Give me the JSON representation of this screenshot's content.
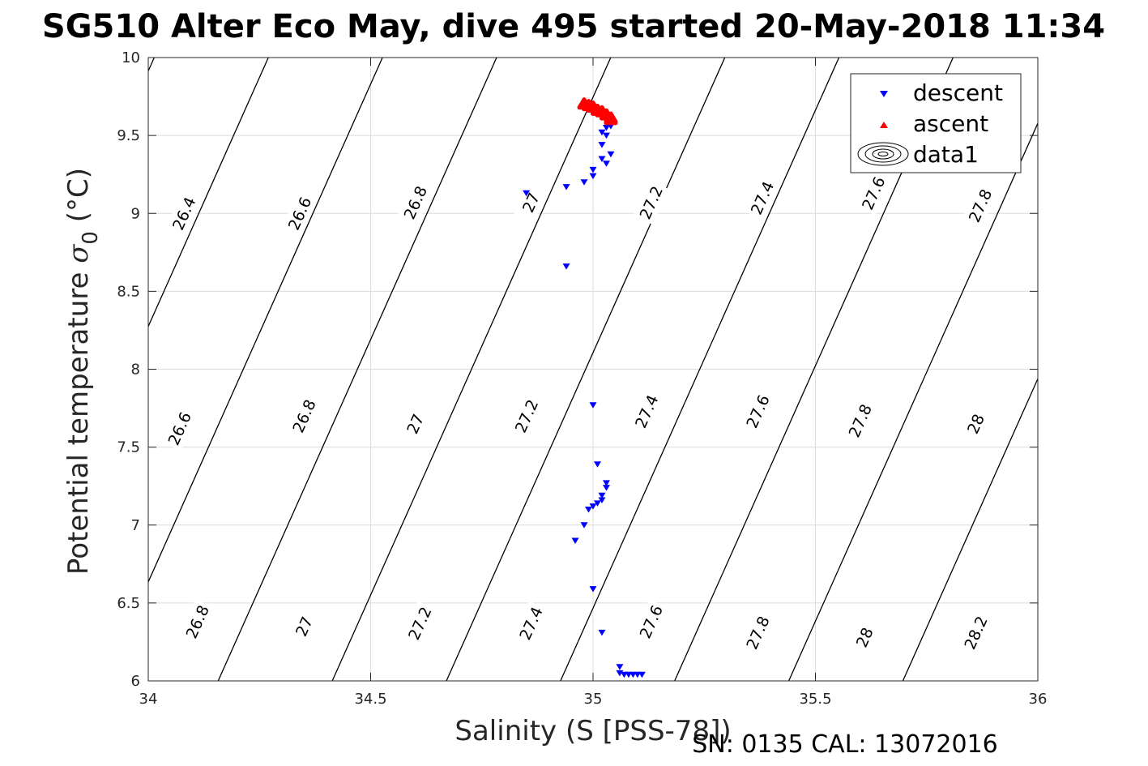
{
  "chart_data": {
    "type": "scatter",
    "title": "SG510 Alter Eco May, dive 495 started 20-May-2018 11:34",
    "xlabel": "Salinity (S [PSS-78])",
    "ylabel_main": "Potential temperature ",
    "ylabel_symbol": "σ",
    "ylabel_sub": "0",
    "ylabel_unit": " (°C)",
    "xlim": [
      34,
      36
    ],
    "ylim": [
      6,
      10
    ],
    "x_ticks": [
      34,
      34.5,
      35,
      35.5,
      36
    ],
    "x_tick_labels": [
      "34",
      "34.5",
      "35",
      "35.5",
      "36"
    ],
    "y_ticks": [
      6,
      6.5,
      7,
      7.5,
      8,
      8.5,
      9,
      9.5,
      10
    ],
    "y_tick_labels": [
      "6",
      "6.5",
      "7",
      "7.5",
      "8",
      "8.5",
      "9",
      "9.5",
      "10"
    ],
    "grid": true,
    "legend_position": "top-right",
    "legend": [
      "descent",
      "ascent",
      "data1"
    ],
    "footer": "SN: 0135  CAL: 13072016",
    "colors": {
      "descent": "#0000ff",
      "ascent": "#ff0000",
      "contour": "#000000",
      "grid": "#dcdcdc"
    },
    "series": [
      {
        "name": "descent",
        "marker": "triangle-down",
        "points": [
          [
            35.04,
            9.58
          ],
          [
            35.03,
            9.55
          ],
          [
            35.04,
            9.56
          ],
          [
            35.02,
            9.52
          ],
          [
            35.03,
            9.5
          ],
          [
            35.02,
            9.44
          ],
          [
            35.04,
            9.38
          ],
          [
            35.02,
            9.35
          ],
          [
            35.03,
            9.32
          ],
          [
            35.0,
            9.28
          ],
          [
            35.0,
            9.24
          ],
          [
            34.98,
            9.2
          ],
          [
            34.94,
            9.17
          ],
          [
            34.85,
            9.13
          ],
          [
            34.94,
            8.66
          ],
          [
            35.0,
            7.77
          ],
          [
            35.01,
            7.39
          ],
          [
            35.03,
            7.27
          ],
          [
            35.03,
            7.24
          ],
          [
            35.02,
            7.19
          ],
          [
            35.02,
            7.16
          ],
          [
            35.01,
            7.14
          ],
          [
            35.0,
            7.12
          ],
          [
            34.99,
            7.1
          ],
          [
            34.98,
            7.0
          ],
          [
            34.96,
            6.9
          ],
          [
            35.0,
            6.59
          ],
          [
            35.02,
            6.31
          ],
          [
            35.06,
            6.09
          ],
          [
            35.06,
            6.05
          ],
          [
            35.07,
            6.04
          ],
          [
            35.08,
            6.04
          ],
          [
            35.09,
            6.04
          ],
          [
            35.1,
            6.04
          ],
          [
            35.11,
            6.04
          ]
        ]
      },
      {
        "name": "ascent",
        "marker": "triangle-up",
        "points": [
          [
            34.98,
            9.7
          ],
          [
            34.99,
            9.69
          ],
          [
            35.0,
            9.68
          ],
          [
            35.01,
            9.66
          ],
          [
            35.02,
            9.65
          ],
          [
            35.03,
            9.63
          ],
          [
            35.04,
            9.61
          ],
          [
            35.04,
            9.6
          ]
        ]
      }
    ],
    "contour_levels": [
      26.4,
      26.6,
      26.8,
      27.0,
      27.2,
      27.4,
      27.6,
      27.8,
      28.0,
      28.2
    ],
    "contour_labels": [
      {
        "text": "26.4",
        "s": 34.08,
        "t": 9.0
      },
      {
        "text": "26.6",
        "s": 34.34,
        "t": 9.0
      },
      {
        "text": "26.8",
        "s": 34.6,
        "t": 9.07
      },
      {
        "text": "27",
        "s": 34.86,
        "t": 9.07
      },
      {
        "text": "27.2",
        "s": 35.13,
        "t": 9.07
      },
      {
        "text": "27.4",
        "s": 35.38,
        "t": 9.1
      },
      {
        "text": "27.6",
        "s": 35.63,
        "t": 9.13
      },
      {
        "text": "27.8",
        "s": 35.87,
        "t": 9.05
      },
      {
        "text": "26.6",
        "s": 34.07,
        "t": 7.62
      },
      {
        "text": "26.8",
        "s": 34.35,
        "t": 7.7
      },
      {
        "text": "27",
        "s": 34.6,
        "t": 7.65
      },
      {
        "text": "27.2",
        "s": 34.85,
        "t": 7.7
      },
      {
        "text": "27.4",
        "s": 35.12,
        "t": 7.73
      },
      {
        "text": "27.6",
        "s": 35.37,
        "t": 7.73
      },
      {
        "text": "27.8",
        "s": 35.6,
        "t": 7.67
      },
      {
        "text": "28",
        "s": 35.86,
        "t": 7.65
      },
      {
        "text": "26.8",
        "s": 34.11,
        "t": 6.38
      },
      {
        "text": "27",
        "s": 34.35,
        "t": 6.35
      },
      {
        "text": "27.2",
        "s": 34.61,
        "t": 6.37
      },
      {
        "text": "27.4",
        "s": 34.86,
        "t": 6.37
      },
      {
        "text": "27.6",
        "s": 35.13,
        "t": 6.38
      },
      {
        "text": "27.8",
        "s": 35.37,
        "t": 6.31
      },
      {
        "text": "28",
        "s": 35.61,
        "t": 6.28
      },
      {
        "text": "28.2",
        "s": 35.86,
        "t": 6.31
      }
    ]
  }
}
